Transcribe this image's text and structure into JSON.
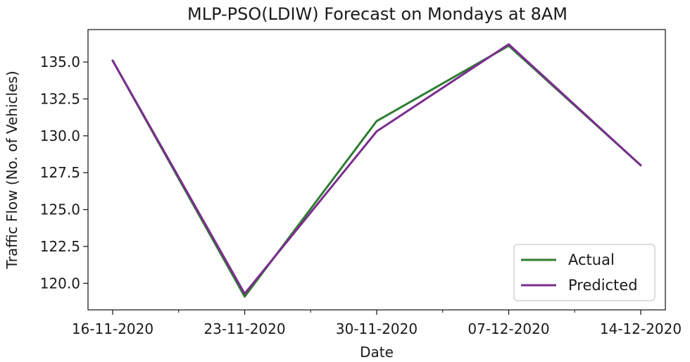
{
  "chart_data": {
    "type": "line",
    "title": "MLP-PSO(LDIW) Forecast on Mondays at 8AM",
    "xlabel": "Date",
    "ylabel": "Traffic Flow (No. of Vehicles)",
    "x": [
      "16-11-2020",
      "23-11-2020",
      "30-11-2020",
      "07-12-2020",
      "14-12-2020"
    ],
    "series": [
      {
        "name": "Actual",
        "color": "#2e7d32",
        "values": [
          135.1,
          119.1,
          131.0,
          136.1,
          128.0
        ]
      },
      {
        "name": "Predicted",
        "color": "#7b2d8e",
        "values": [
          135.1,
          119.3,
          130.3,
          136.2,
          128.0
        ]
      }
    ],
    "ylim": [
      118.2,
      137.2
    ],
    "yticks": [
      "120.0",
      "122.5",
      "125.0",
      "127.5",
      "130.0",
      "132.5",
      "135.0"
    ],
    "grid": false,
    "legend": "lower-right"
  }
}
